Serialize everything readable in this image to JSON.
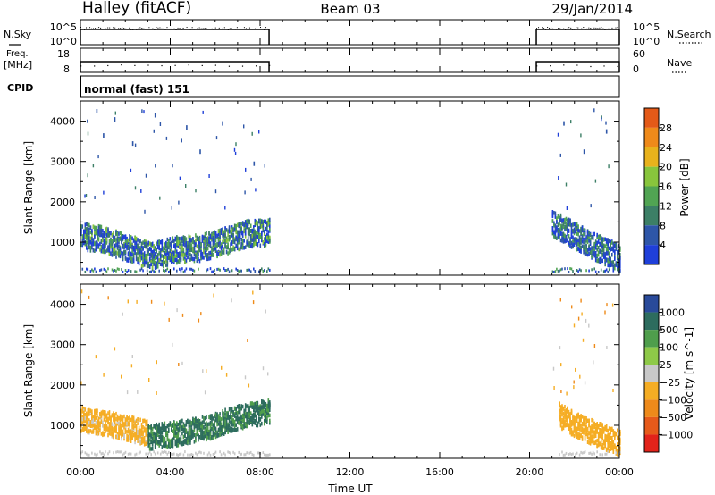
{
  "header": {
    "station": "Halley (fitACF)",
    "beam": "Beam 03",
    "date": "29/Jan/2014"
  },
  "panels": {
    "nsky": {
      "left_label": "N.Sky",
      "left_ticks": [
        "10^5",
        "10^0"
      ],
      "right_label": "N.Search",
      "right_ticks": [
        "10^5",
        "10^0"
      ]
    },
    "freq": {
      "left_label_1": "Freq.",
      "left_label_2": "[MHz]",
      "left_ticks": [
        "18",
        "8"
      ],
      "right_label": "Nave",
      "right_ticks": [
        "60",
        "0"
      ]
    },
    "cpid": {
      "label": "CPID",
      "text": "normal (fast) 151"
    }
  },
  "colors": {
    "power_scale": [
      "#1f3fd9",
      "#2e56a8",
      "#3c7f66",
      "#51a453",
      "#88c53c",
      "#e8b21c",
      "#ef8a1a",
      "#e45a18",
      "#d8241a"
    ],
    "velocity_scale": [
      "#e2231a",
      "#e65a1a",
      "#ee8a1a",
      "#f5ad24",
      "#c8c8c8",
      "#8ec948",
      "#4f9e4c",
      "#2d6c5e",
      "#294a9a",
      "#1f2cc8"
    ]
  },
  "chart_data": [
    {
      "type": "heatmap",
      "title": "",
      "ylabel": "Slant Range [km]",
      "xlabel": "",
      "y_ticks": [
        "1000",
        "2000",
        "3000",
        "4000"
      ],
      "ylim": [
        180,
        4500
      ],
      "xlim": [
        "00:00",
        "24:00"
      ],
      "colorbar": {
        "label": "Power [dB]",
        "ticks": [
          "4",
          "8",
          "12",
          "16",
          "20",
          "24",
          "28"
        ],
        "range": [
          0,
          32
        ]
      },
      "echo_bands": [
        {
          "t_start": 0.0,
          "t_end": 8.4,
          "range_center_km": [
            1200,
            1100,
            900,
            700,
            850,
            900,
            1050,
            1250,
            1300
          ],
          "power_db": 10
        },
        {
          "t_start": 21.0,
          "t_end": 24.0,
          "range_center_km": [
            1500,
            1200,
            900,
            650
          ],
          "power_db": 8
        }
      ],
      "scatter_echo_points": [
        {
          "t": 0.7,
          "range_km": 4300
        },
        {
          "t": 1.0,
          "range_km": 3700
        },
        {
          "t": 1.5,
          "range_km": 4100
        },
        {
          "t": 2.3,
          "range_km": 3500
        },
        {
          "t": 3.3,
          "range_km": 4200
        },
        {
          "t": 4.7,
          "range_km": 3900
        },
        {
          "t": 5.3,
          "range_km": 3300
        },
        {
          "t": 6.3,
          "range_km": 4000
        },
        {
          "t": 7.7,
          "range_km": 3000
        },
        {
          "t": 21.5,
          "range_km": 4000
        },
        {
          "t": 22.4,
          "range_km": 3300
        },
        {
          "t": 23.4,
          "range_km": 3800
        }
      ]
    },
    {
      "type": "heatmap",
      "title": "",
      "ylabel": "Slant Range [km]",
      "xlabel": "Time UT",
      "x_ticks": [
        "00:00",
        "04:00",
        "08:00",
        "12:00",
        "16:00",
        "20:00",
        "00:00"
      ],
      "y_ticks": [
        "1000",
        "2000",
        "3000",
        "4000"
      ],
      "ylim": [
        180,
        4500
      ],
      "xlim": [
        "00:00",
        "24:00"
      ],
      "colorbar": {
        "label": "Velocity [m s^-1]",
        "ticks": [
          "1000",
          "500",
          "100",
          "25",
          "−25",
          "−100",
          "−500",
          "−1000"
        ]
      },
      "echo_bands": [
        {
          "t_start": 0.0,
          "t_end": 3.0,
          "range_center_km": [
            1200,
            1050,
            850
          ],
          "velocity_ms": -200
        },
        {
          "t_start": 3.0,
          "t_end": 8.4,
          "range_center_km": [
            750,
            850,
            1000,
            1250,
            1400
          ],
          "velocity_ms": 150
        },
        {
          "t_start": 21.3,
          "t_end": 24.0,
          "range_center_km": [
            1300,
            1000,
            800,
            600
          ],
          "velocity_ms": -300
        }
      ]
    }
  ]
}
